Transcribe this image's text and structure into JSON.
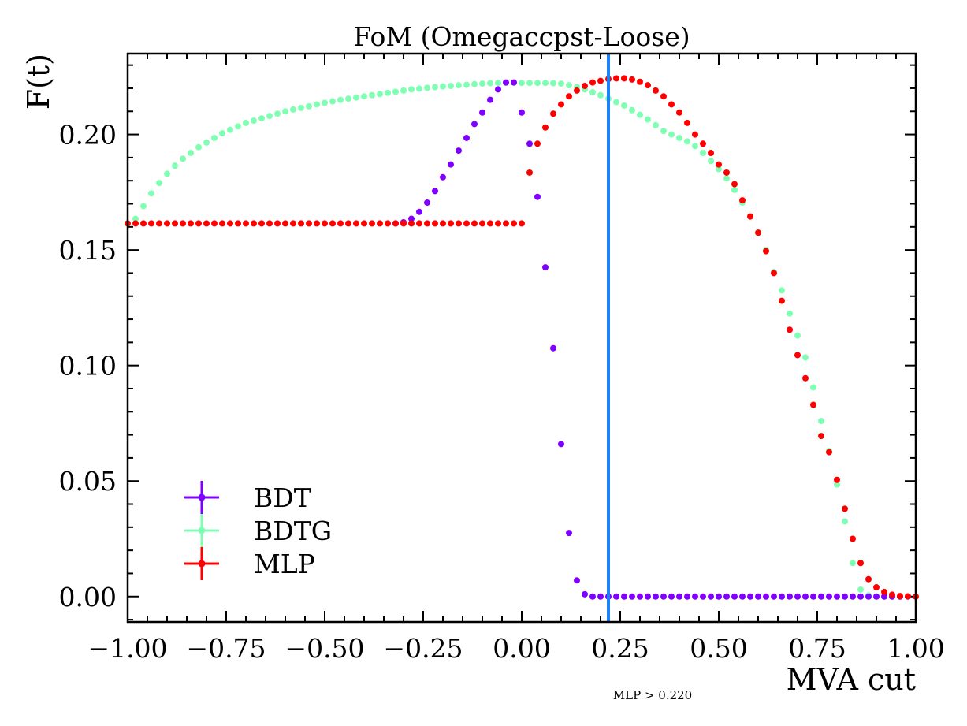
{
  "chart_data": {
    "type": "scatter",
    "title": "FoM (Omegaccpst-Loose)",
    "xlabel": "MVA cut",
    "ylabel": "F(t)",
    "xlim": [
      -1.0,
      1.0
    ],
    "ylim": [
      -0.011,
      0.235
    ],
    "xticks": [
      "−1.00",
      "−0.75",
      "−0.50",
      "−0.25",
      "0.00",
      "0.25",
      "0.50",
      "0.75",
      "1.00"
    ],
    "yticks": [
      "0.00",
      "0.05",
      "0.10",
      "0.15",
      "0.20"
    ],
    "legend_position": "lower-left",
    "cut_line": {
      "x": 0.22,
      "color": "#1a82ff"
    },
    "annotation": "MLP > 0.220",
    "series": [
      {
        "name": "BDT",
        "color": "#7f00ff",
        "x": [
          -0.32,
          -0.3,
          -0.28,
          -0.26,
          -0.24,
          -0.22,
          -0.2,
          -0.18,
          -0.16,
          -0.14,
          -0.12,
          -0.1,
          -0.08,
          -0.06,
          -0.04,
          -0.02,
          0.0,
          0.02,
          0.04,
          0.06,
          0.08,
          0.1,
          0.12,
          0.14,
          0.16,
          0.18,
          0.2,
          0.22,
          0.24,
          0.26,
          0.28,
          0.3,
          0.32,
          0.34,
          0.36,
          0.38,
          0.4,
          0.42,
          0.44,
          0.46,
          0.48,
          0.5,
          0.52,
          0.54,
          0.56,
          0.58,
          0.6,
          0.62,
          0.64,
          0.66,
          0.68,
          0.7,
          0.72,
          0.74,
          0.76,
          0.78,
          0.8,
          0.82,
          0.84,
          0.86,
          0.88,
          0.9,
          0.92,
          0.94,
          0.96,
          0.98
        ],
        "y": [
          0.1615,
          0.162,
          0.1635,
          0.1665,
          0.1705,
          0.1755,
          0.1815,
          0.187,
          0.193,
          0.1985,
          0.2045,
          0.2095,
          0.215,
          0.2195,
          0.2225,
          0.2225,
          0.2095,
          0.196,
          0.173,
          0.1425,
          0.1075,
          0.066,
          0.0275,
          0.007,
          0.001,
          0.0,
          0.0,
          0.0,
          0.0,
          0.0,
          0.0,
          0.0,
          0.0,
          0.0,
          0.0,
          0.0,
          0.0,
          0.0,
          0.0,
          0.0,
          0.0,
          0.0,
          0.0,
          0.0,
          0.0,
          0.0,
          0.0,
          0.0,
          0.0,
          0.0,
          0.0,
          0.0,
          0.0,
          0.0,
          0.0,
          0.0,
          0.0,
          0.0,
          0.0,
          0.0,
          0.0,
          0.0,
          0.0,
          0.0,
          0.0,
          0.0
        ]
      },
      {
        "name": "BDTG",
        "color": "#80ffb4",
        "x": [
          -0.98,
          -0.96,
          -0.94,
          -0.92,
          -0.9,
          -0.88,
          -0.86,
          -0.84,
          -0.82,
          -0.8,
          -0.78,
          -0.76,
          -0.74,
          -0.72,
          -0.7,
          -0.68,
          -0.66,
          -0.64,
          -0.62,
          -0.6,
          -0.58,
          -0.56,
          -0.54,
          -0.52,
          -0.5,
          -0.48,
          -0.46,
          -0.44,
          -0.42,
          -0.4,
          -0.38,
          -0.36,
          -0.34,
          -0.32,
          -0.3,
          -0.28,
          -0.26,
          -0.24,
          -0.22,
          -0.2,
          -0.18,
          -0.16,
          -0.14,
          -0.12,
          -0.1,
          -0.08,
          -0.06,
          -0.04,
          -0.02,
          0.0,
          0.02,
          0.04,
          0.06,
          0.08,
          0.1,
          0.12,
          0.14,
          0.16,
          0.18,
          0.2,
          0.22,
          0.24,
          0.26,
          0.28,
          0.3,
          0.32,
          0.34,
          0.36,
          0.38,
          0.4,
          0.42,
          0.44,
          0.46,
          0.48,
          0.5,
          0.52,
          0.54,
          0.56,
          0.58,
          0.6,
          0.62,
          0.64,
          0.66,
          0.68,
          0.7,
          0.72,
          0.74,
          0.76,
          0.78,
          0.8,
          0.82,
          0.84,
          0.86,
          0.88,
          0.9,
          0.92,
          0.94,
          0.96
        ],
        "y": [
          0.1635,
          0.169,
          0.1745,
          0.179,
          0.183,
          0.1865,
          0.1895,
          0.192,
          0.1945,
          0.1965,
          0.1985,
          0.2005,
          0.202,
          0.2035,
          0.205,
          0.206,
          0.207,
          0.208,
          0.209,
          0.21,
          0.2108,
          0.2115,
          0.2122,
          0.213,
          0.2137,
          0.2143,
          0.215,
          0.2155,
          0.216,
          0.2165,
          0.217,
          0.2175,
          0.218,
          0.2185,
          0.219,
          0.2195,
          0.2198,
          0.2202,
          0.2205,
          0.2208,
          0.221,
          0.2213,
          0.2215,
          0.2218,
          0.222,
          0.2222,
          0.2223,
          0.2224,
          0.2224,
          0.2223,
          0.2223,
          0.2223,
          0.2223,
          0.2222,
          0.222,
          0.2213,
          0.2205,
          0.2195,
          0.2183,
          0.217,
          0.2155,
          0.214,
          0.2125,
          0.2105,
          0.2085,
          0.2065,
          0.204,
          0.2015,
          0.2,
          0.1985,
          0.197,
          0.195,
          0.192,
          0.1885,
          0.185,
          0.181,
          0.176,
          0.1705,
          0.1645,
          0.1575,
          0.15,
          0.1405,
          0.1325,
          0.1225,
          0.113,
          0.1035,
          0.0905,
          0.076,
          0.063,
          0.0485,
          0.0325,
          0.0145,
          0.003,
          0.0005,
          0.0,
          0.0,
          0.0,
          0.0
        ]
      },
      {
        "name": "MLP",
        "color": "#ff0000",
        "x": [
          -1.0,
          -0.98,
          -0.96,
          -0.94,
          -0.92,
          -0.9,
          -0.88,
          -0.86,
          -0.84,
          -0.82,
          -0.8,
          -0.78,
          -0.76,
          -0.74,
          -0.72,
          -0.7,
          -0.68,
          -0.66,
          -0.64,
          -0.62,
          -0.6,
          -0.58,
          -0.56,
          -0.54,
          -0.52,
          -0.5,
          -0.48,
          -0.46,
          -0.44,
          -0.42,
          -0.4,
          -0.38,
          -0.36,
          -0.34,
          -0.32,
          -0.3,
          -0.28,
          -0.26,
          -0.24,
          -0.22,
          -0.2,
          -0.18,
          -0.16,
          -0.14,
          -0.12,
          -0.1,
          -0.08,
          -0.06,
          -0.04,
          -0.02,
          0.0,
          0.02,
          0.04,
          0.06,
          0.08,
          0.1,
          0.12,
          0.14,
          0.16,
          0.18,
          0.2,
          0.22,
          0.24,
          0.26,
          0.28,
          0.3,
          0.32,
          0.34,
          0.36,
          0.38,
          0.4,
          0.42,
          0.44,
          0.46,
          0.48,
          0.5,
          0.52,
          0.54,
          0.56,
          0.58,
          0.6,
          0.62,
          0.64,
          0.66,
          0.68,
          0.7,
          0.72,
          0.74,
          0.76,
          0.78,
          0.8,
          0.82,
          0.84,
          0.86,
          0.88,
          0.9,
          0.92,
          0.94,
          0.96,
          0.98,
          1.0
        ],
        "y": [
          0.1615,
          0.1615,
          0.1615,
          0.1615,
          0.1615,
          0.1615,
          0.1615,
          0.1615,
          0.1615,
          0.1615,
          0.1615,
          0.1615,
          0.1615,
          0.1615,
          0.1615,
          0.1615,
          0.1615,
          0.1615,
          0.1615,
          0.1615,
          0.1615,
          0.1615,
          0.1615,
          0.1615,
          0.1615,
          0.1615,
          0.1615,
          0.1615,
          0.1615,
          0.1615,
          0.1615,
          0.1615,
          0.1615,
          0.1615,
          0.1615,
          0.1615,
          0.1615,
          0.1615,
          0.1615,
          0.1615,
          0.1615,
          0.1615,
          0.1615,
          0.1615,
          0.1615,
          0.1615,
          0.1615,
          0.1615,
          0.1615,
          0.1615,
          0.1615,
          0.1835,
          0.196,
          0.203,
          0.209,
          0.213,
          0.2165,
          0.219,
          0.221,
          0.2225,
          0.2232,
          0.224,
          0.2243,
          0.2243,
          0.2238,
          0.2228,
          0.2213,
          0.219,
          0.2165,
          0.213,
          0.2095,
          0.205,
          0.2,
          0.196,
          0.192,
          0.187,
          0.1835,
          0.1785,
          0.1715,
          0.1645,
          0.1575,
          0.1495,
          0.14,
          0.128,
          0.1155,
          0.1045,
          0.0945,
          0.083,
          0.0695,
          0.0625,
          0.0505,
          0.038,
          0.025,
          0.0145,
          0.0075,
          0.004,
          0.002,
          0.0008,
          0.0002,
          0.0001,
          0.0
        ]
      }
    ]
  }
}
